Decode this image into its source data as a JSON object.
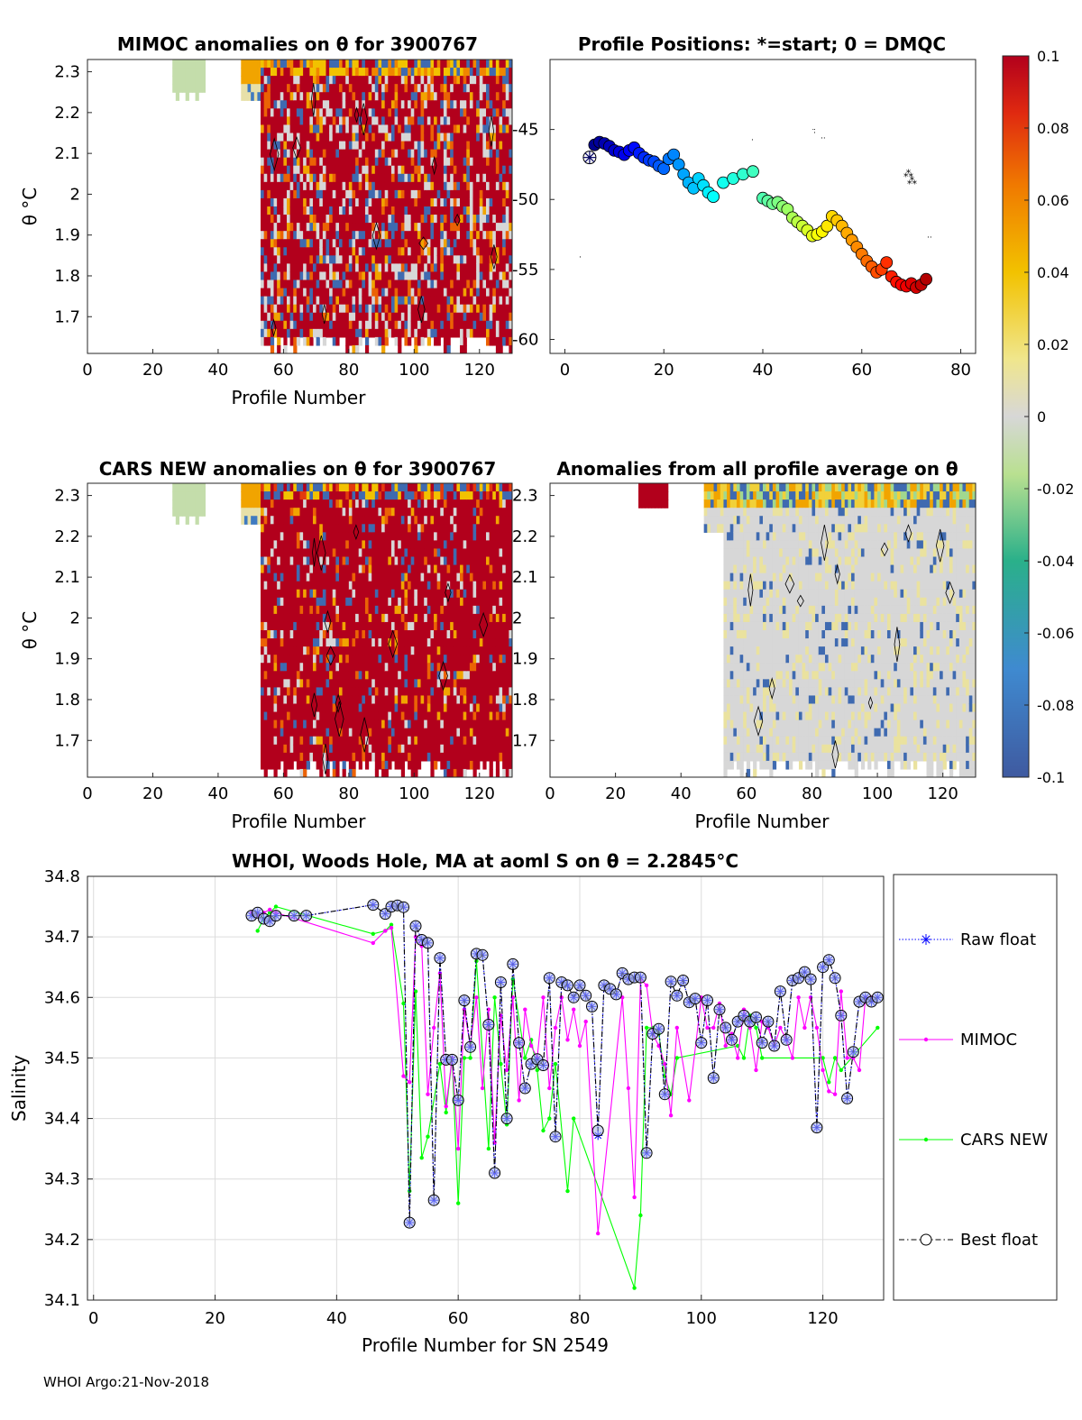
{
  "footer": "WHOI Argo:21-Nov-2018",
  "colors": {
    "raw": "#0000ff",
    "mimoc": "#ff00ff",
    "cars": "#00ff00",
    "best": "#000000",
    "best_marker_fill": "#a8b4e8",
    "grid": "#dcdcdc",
    "anom_pos": "#b2001c",
    "anom_neutral": "#d7d7d7",
    "anom_neg": "#3f5aa0"
  },
  "colorbar": {
    "ticks": [
      "0.1",
      "0.08",
      "0.06",
      "0.04",
      "0.02",
      "0",
      "-0.02",
      "-0.04",
      "-0.06",
      "-0.08",
      "-0.1"
    ]
  },
  "chart_data": [
    {
      "id": "mimoc",
      "type": "heatmap",
      "title": "MIMOC anomalies on θ  for 3900767",
      "xlabel": "Profile Number",
      "ylabel": "θ °C",
      "xlim": [
        0,
        130
      ],
      "ylim": [
        1.61,
        2.33
      ],
      "xticks": [
        "0",
        "20",
        "40",
        "60",
        "80",
        "100",
        "120"
      ],
      "yticks": [
        "1.7",
        "1.8",
        "1.9",
        "2",
        "2.1",
        "2.2",
        "2.3"
      ],
      "clim": [
        -0.1,
        0.1
      ]
    },
    {
      "id": "positions",
      "type": "scatter",
      "title": "Profile Positions: *=start; 0 = DMQC",
      "xlim": [
        -3,
        83
      ],
      "ylim": [
        -61,
        -40
      ],
      "xticks": [
        "0",
        "20",
        "40",
        "60",
        "80"
      ],
      "yticks": [
        "-45",
        "-50",
        "-55",
        "-60"
      ],
      "x": [
        5,
        6,
        7,
        8,
        9,
        10,
        11,
        12,
        13,
        14,
        15,
        16,
        17,
        18,
        19,
        20,
        21,
        22,
        23,
        24,
        25,
        26,
        27,
        28,
        29,
        30,
        32,
        34,
        36,
        38,
        40,
        41,
        42,
        43,
        44,
        45,
        46,
        47,
        48,
        49,
        50,
        51,
        52,
        53,
        54,
        55,
        56,
        57,
        58,
        59,
        60,
        61,
        62,
        63,
        64,
        65,
        66,
        67,
        68,
        69,
        70,
        71,
        72,
        73
      ],
      "y": [
        -47.0,
        -46.1,
        -45.9,
        -46.0,
        -46.2,
        -46.5,
        -46.6,
        -46.8,
        -46.5,
        -46.3,
        -46.7,
        -47.0,
        -47.2,
        -47.3,
        -47.6,
        -47.8,
        -47.1,
        -46.8,
        -47.5,
        -48.2,
        -48.8,
        -49.2,
        -48.5,
        -49.0,
        -49.5,
        -49.8,
        -48.8,
        -48.5,
        -48.2,
        -48.0,
        -49.9,
        -50.1,
        -50.3,
        -50.2,
        -50.5,
        -50.7,
        -51.3,
        -51.6,
        -51.9,
        -52.2,
        -52.6,
        -52.5,
        -52.3,
        -51.9,
        -51.2,
        -51.5,
        -51.9,
        -52.4,
        -52.9,
        -53.4,
        -53.9,
        -54.4,
        -54.8,
        -55.2,
        -55.0,
        -54.5,
        -55.5,
        -55.9,
        -56.1,
        -56.2,
        -56.0,
        -56.3,
        -56.1,
        -55.7
      ]
    },
    {
      "id": "cars",
      "type": "heatmap",
      "title": "CARS NEW anomalies on θ for 3900767",
      "xlabel": "Profile Number",
      "ylabel": "θ °C",
      "xlim": [
        0,
        130
      ],
      "ylim": [
        1.61,
        2.33
      ],
      "xticks": [
        "0",
        "20",
        "40",
        "60",
        "80",
        "100",
        "120"
      ],
      "yticks": [
        "1.7",
        "1.8",
        "1.9",
        "2",
        "2.1",
        "2.2",
        "2.3"
      ],
      "clim": [
        -0.1,
        0.1
      ]
    },
    {
      "id": "allavg",
      "type": "heatmap",
      "title": "Anomalies from all profile average on θ",
      "xlabel": "Profile Number",
      "xlim": [
        0,
        130
      ],
      "ylim": [
        1.61,
        2.33
      ],
      "xticks": [
        "0",
        "20",
        "40",
        "60",
        "80",
        "100",
        "120"
      ],
      "yticks": [
        "1.7",
        "1.8",
        "1.9",
        "2",
        "2.1",
        "2.2",
        "2.3"
      ],
      "clim": [
        -0.1,
        0.1
      ]
    },
    {
      "id": "salinity",
      "type": "line",
      "title": "WHOI, Woods Hole, MA at aoml S on θ = 2.2845°C",
      "xlabel": "Profile Number for SN 2549",
      "ylabel": "Salinity",
      "xlim": [
        -1,
        130
      ],
      "ylim": [
        34.1,
        34.8
      ],
      "xticks": [
        "0",
        "20",
        "40",
        "60",
        "80",
        "100",
        "120"
      ],
      "yticks": [
        "34.1",
        "34.2",
        "34.3",
        "34.4",
        "34.5",
        "34.6",
        "34.7",
        "34.8"
      ],
      "legend": [
        "Raw float",
        "MIMOC",
        "CARS NEW",
        "Best float"
      ],
      "legend_position": "outside-right",
      "series": [
        {
          "name": "Best float",
          "x": [
            26,
            27,
            28,
            29,
            30,
            33,
            35,
            46,
            48,
            49,
            50,
            51,
            52,
            53,
            54,
            55,
            56,
            57,
            58,
            59,
            60,
            61,
            62,
            63,
            64,
            65,
            66,
            67,
            68,
            69,
            70,
            71,
            72,
            73,
            74,
            75,
            76,
            77,
            78,
            79,
            80,
            81,
            82,
            83,
            84,
            85,
            86,
            87,
            88,
            89,
            90,
            91,
            92,
            93,
            94,
            95,
            96,
            97,
            98,
            99,
            100,
            101,
            102,
            103,
            104,
            105,
            106,
            107,
            108,
            109,
            110,
            111,
            112,
            113,
            114,
            115,
            116,
            117,
            118,
            119,
            120,
            121,
            122,
            123,
            124,
            125,
            126,
            127,
            128,
            129
          ],
          "values": [
            34.735,
            34.74,
            34.73,
            34.726,
            34.735,
            34.735,
            34.735,
            34.753,
            34.738,
            34.75,
            34.752,
            34.749,
            34.228,
            34.718,
            34.695,
            34.69,
            34.265,
            34.665,
            34.497,
            34.497,
            34.43,
            34.595,
            34.518,
            34.672,
            34.67,
            34.555,
            34.31,
            34.625,
            34.4,
            34.655,
            34.525,
            34.45,
            34.49,
            34.498,
            34.488,
            34.632,
            34.37,
            34.625,
            34.62,
            34.6,
            34.62,
            34.603,
            34.585,
            34.38,
            34.62,
            34.614,
            34.605,
            34.64,
            34.63,
            34.633,
            34.633,
            34.343,
            34.54,
            34.548,
            34.44,
            34.626,
            34.603,
            34.628,
            34.592,
            34.598,
            34.525,
            34.595,
            34.467,
            34.58,
            34.55,
            34.53,
            34.56,
            34.57,
            34.56,
            34.567,
            34.525,
            34.56,
            34.52,
            34.61,
            34.53,
            34.628,
            34.632,
            34.642,
            34.63,
            34.385,
            34.65,
            34.662,
            34.632,
            34.57,
            34.433,
            34.51,
            34.593,
            34.6,
            34.593,
            34.6
          ]
        },
        {
          "name": "Raw float",
          "x": [
            26,
            27,
            28,
            29,
            30,
            33,
            35,
            46,
            48,
            49,
            50,
            51,
            52,
            53,
            54,
            55,
            56,
            57,
            58,
            59,
            60,
            61,
            62,
            63,
            64,
            65,
            66,
            67,
            68,
            69,
            70,
            71,
            72,
            73,
            74,
            75,
            76,
            77,
            78,
            79,
            80,
            81,
            82,
            83,
            84,
            85,
            86,
            87,
            88,
            89,
            90,
            91,
            92,
            93,
            94,
            95,
            96,
            97,
            98,
            99,
            100,
            101,
            102,
            103,
            104,
            105,
            106,
            107,
            108,
            109,
            110,
            111,
            112,
            113,
            114,
            115,
            116,
            117,
            118,
            119,
            120,
            121,
            122,
            123,
            124,
            125,
            126,
            127,
            128,
            129
          ],
          "values": [
            34.735,
            34.74,
            34.73,
            34.726,
            34.735,
            34.735,
            34.735,
            34.753,
            34.738,
            34.75,
            34.752,
            34.749,
            34.228,
            34.718,
            34.695,
            34.69,
            34.265,
            34.665,
            34.497,
            34.497,
            34.43,
            34.595,
            34.518,
            34.672,
            34.67,
            34.555,
            34.31,
            34.625,
            34.4,
            34.655,
            34.525,
            34.45,
            34.49,
            34.498,
            34.488,
            34.632,
            34.37,
            34.625,
            34.62,
            34.6,
            34.62,
            34.603,
            34.585,
            34.372,
            34.62,
            34.614,
            34.605,
            34.64,
            34.63,
            34.633,
            34.633,
            34.343,
            34.54,
            34.548,
            34.44,
            34.626,
            34.603,
            34.628,
            34.592,
            34.598,
            34.525,
            34.595,
            34.467,
            34.58,
            34.55,
            34.53,
            34.56,
            34.57,
            34.56,
            34.567,
            34.525,
            34.56,
            34.52,
            34.61,
            34.53,
            34.628,
            34.632,
            34.642,
            34.63,
            34.385,
            34.65,
            34.662,
            34.632,
            34.57,
            34.433,
            34.51,
            34.593,
            34.6,
            34.593,
            34.6
          ]
        },
        {
          "name": "MIMOC",
          "x": [
            26,
            27,
            28,
            29,
            30,
            46,
            48,
            49,
            51,
            52,
            53,
            54,
            55,
            56,
            57,
            58,
            59,
            60,
            61,
            62,
            63,
            64,
            65,
            66,
            67,
            68,
            69,
            70,
            71,
            72,
            73,
            74,
            75,
            76,
            77,
            78,
            79,
            80,
            81,
            83,
            87,
            88,
            89,
            90,
            91,
            92,
            93,
            94,
            95,
            96,
            98,
            100,
            101,
            102,
            103,
            104,
            105,
            106,
            107,
            108,
            109,
            110,
            111,
            112,
            113,
            114,
            115,
            116,
            117,
            118,
            119,
            120,
            121,
            122,
            123,
            124,
            125,
            126,
            127,
            128
          ],
          "values": [
            34.74,
            34.735,
            34.74,
            34.745,
            34.74,
            34.69,
            34.71,
            34.715,
            34.47,
            34.46,
            34.7,
            34.685,
            34.44,
            34.55,
            34.64,
            34.42,
            34.5,
            34.35,
            34.58,
            34.52,
            34.6,
            34.45,
            34.58,
            34.36,
            34.57,
            34.48,
            34.6,
            34.43,
            34.58,
            34.52,
            34.5,
            34.6,
            34.45,
            34.55,
            34.6,
            34.53,
            34.58,
            34.52,
            34.56,
            34.21,
            34.6,
            34.45,
            34.27,
            34.63,
            34.62,
            34.54,
            34.52,
            34.49,
            34.405,
            34.55,
            34.43,
            34.6,
            34.55,
            34.55,
            34.59,
            34.52,
            34.54,
            34.5,
            34.58,
            34.55,
            34.48,
            34.56,
            34.55,
            34.52,
            34.55,
            34.53,
            34.5,
            34.6,
            34.55,
            34.6,
            34.55,
            34.48,
            34.445,
            34.44,
            34.61,
            34.5,
            34.5,
            34.48,
            34.6,
            34.6
          ]
        },
        {
          "name": "CARS NEW",
          "x": [
            27,
            28,
            29,
            30,
            46,
            48,
            49,
            51,
            52,
            53,
            54,
            55,
            57,
            58,
            59,
            60,
            61,
            62,
            63,
            65,
            66,
            67,
            68,
            69,
            71,
            72,
            73,
            74,
            75,
            76,
            78,
            79,
            89,
            90,
            91,
            92,
            93,
            94,
            95,
            96,
            106,
            107,
            108,
            109,
            110,
            120,
            121,
            122,
            123,
            129
          ],
          "values": [
            34.71,
            34.73,
            34.74,
            34.75,
            34.705,
            34.71,
            34.72,
            34.59,
            34.28,
            34.61,
            34.335,
            34.37,
            34.49,
            34.41,
            34.5,
            34.26,
            34.5,
            34.5,
            34.66,
            34.35,
            34.6,
            34.49,
            34.39,
            34.63,
            34.5,
            34.53,
            34.48,
            34.38,
            34.4,
            34.49,
            34.28,
            34.4,
            34.12,
            34.24,
            34.55,
            34.55,
            34.54,
            34.47,
            34.44,
            34.5,
            34.52,
            34.5,
            34.57,
            34.55,
            34.5,
            34.5,
            34.46,
            34.5,
            34.48,
            34.55
          ]
        }
      ]
    }
  ]
}
